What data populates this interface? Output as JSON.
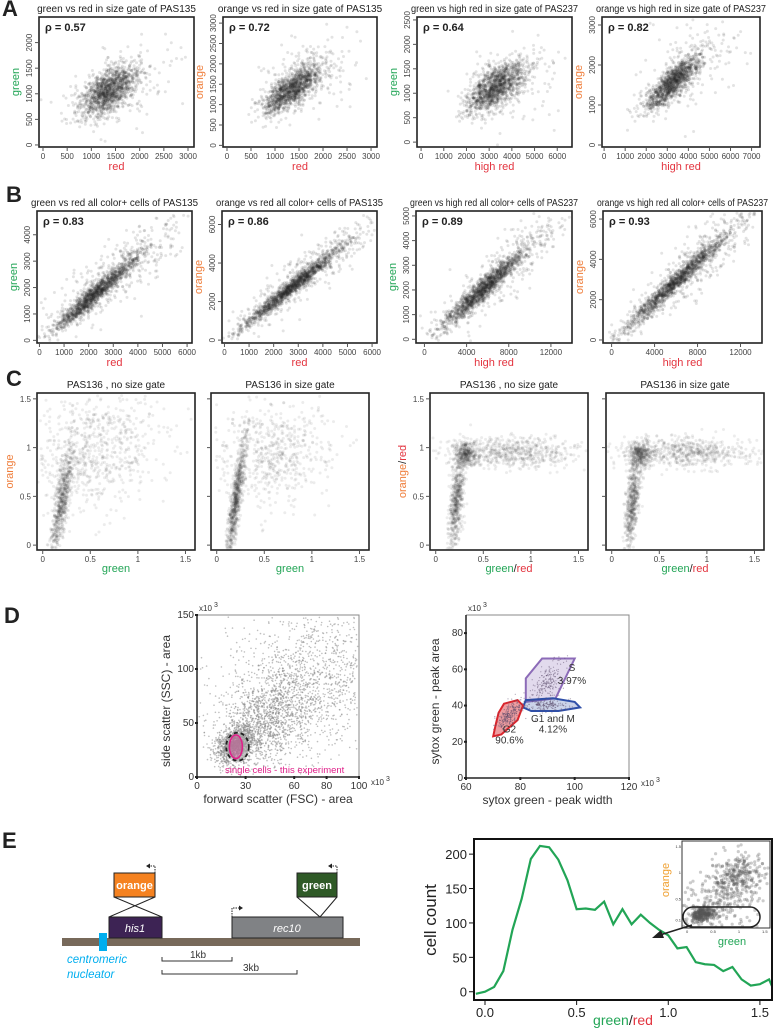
{
  "colors": {
    "green": "#22a556",
    "red": "#e3343f",
    "orange": "#ef7d3a",
    "black": "#222222",
    "magenta": "#e0208a",
    "cyan": "#00aeef",
    "gate_red": "#d9262d",
    "gate_purple": "#8c6bb8",
    "gate_blue": "#2f4fa8"
  },
  "panel_letters": {
    "A": "A",
    "B": "B",
    "C": "C",
    "D": "D",
    "E": "E"
  },
  "chart_data": [
    {
      "id": "A1",
      "type": "scatter",
      "title": "green vs red in size gate of PAS135",
      "rho": "ρ = 0.57",
      "xlim": [
        -83,
        3124
      ],
      "ylim": [
        -40,
        2500
      ],
      "xticks": [
        0,
        500,
        1000,
        1500,
        2000,
        2500,
        3000
      ],
      "yticks": [
        0,
        500,
        1000,
        1500,
        2000
      ],
      "xlabel": [
        {
          "text": "red",
          "color": "red"
        }
      ],
      "ylabel": [
        {
          "text": "green",
          "color": "green"
        }
      ],
      "clouds": [
        {
          "cx": 1350,
          "cy": 1050,
          "sx": 300,
          "sy": 260,
          "r": 0.57,
          "n": 1300
        },
        {
          "cx": 1700,
          "cy": 1150,
          "sx": 600,
          "sy": 400,
          "r": 0.3,
          "n": 150
        }
      ]
    },
    {
      "id": "A2",
      "type": "scatter",
      "title": "orange vs red in size gate of PAS135",
      "rho": "ρ = 0.72",
      "xlim": [
        -83,
        3124
      ],
      "ylim": [
        -40,
        3150
      ],
      "xticks": [
        0,
        500,
        1000,
        1500,
        2000,
        2500,
        3000
      ],
      "yticks": [
        0,
        500,
        1000,
        1500,
        2000,
        2500,
        3000
      ],
      "xlabel": [
        {
          "text": "red",
          "color": "red"
        }
      ],
      "ylabel": [
        {
          "text": "orange",
          "color": "orange"
        }
      ],
      "clouds": [
        {
          "cx": 1350,
          "cy": 1380,
          "sx": 300,
          "sy": 300,
          "r": 0.72,
          "n": 1300
        },
        {
          "cx": 1800,
          "cy": 1700,
          "sx": 600,
          "sy": 500,
          "r": 0.4,
          "n": 150
        }
      ]
    },
    {
      "id": "A3",
      "type": "scatter",
      "title": "green vs high red in size gate of PAS237",
      "rho": "ρ = 0.64",
      "xlim": [
        -180,
        6650
      ],
      "ylim": [
        -100,
        2560
      ],
      "xticks": [
        0,
        1000,
        2000,
        3000,
        4000,
        5000,
        6000
      ],
      "yticks": [
        0,
        500,
        1000,
        1500,
        2000,
        2500
      ],
      "xlabel": [
        {
          "text": "high red",
          "color": "red"
        }
      ],
      "ylabel": [
        {
          "text": "green",
          "color": "green"
        }
      ],
      "clouds": [
        {
          "cx": 3300,
          "cy": 1120,
          "sx": 650,
          "sy": 260,
          "r": 0.64,
          "n": 1300
        },
        {
          "cx": 4000,
          "cy": 1250,
          "sx": 1200,
          "sy": 450,
          "r": 0.3,
          "n": 150
        }
      ]
    },
    {
      "id": "A4",
      "type": "scatter",
      "title": "orange vs high red in size gate of PAS237",
      "rho": "ρ = 0.82",
      "xlim": [
        -100,
        7400
      ],
      "ylim": [
        -50,
        3200
      ],
      "xticks": [
        0,
        1000,
        2000,
        3000,
        4000,
        5000,
        6000,
        7000
      ],
      "yticks": [
        0,
        1000,
        2000,
        3000
      ],
      "xlabel": [
        {
          "text": "high red",
          "color": "red"
        }
      ],
      "ylabel": [
        {
          "text": "orange",
          "color": "orange"
        }
      ],
      "clouds": [
        {
          "cx": 3300,
          "cy": 1580,
          "sx": 650,
          "sy": 350,
          "r": 0.82,
          "n": 1300
        },
        {
          "cx": 4300,
          "cy": 2000,
          "sx": 1200,
          "sy": 600,
          "r": 0.4,
          "n": 130
        }
      ]
    },
    {
      "id": "B1",
      "type": "scatter",
      "title": "green vs red all color+ cells of PAS135",
      "rho": "ρ = 0.83",
      "xlim": [
        -100,
        6200
      ],
      "ylim": [
        -100,
        4900
      ],
      "xticks": [
        0,
        1000,
        2000,
        3000,
        4000,
        5000,
        6000
      ],
      "yticks": [
        0,
        1000,
        2000,
        3000,
        4000
      ],
      "xlabel": [
        {
          "text": "red",
          "color": "red"
        }
      ],
      "ylabel": [
        {
          "text": "green",
          "color": "green"
        }
      ],
      "clouds": [
        {
          "cx": 2300,
          "cy": 1800,
          "sx": 850,
          "sy": 700,
          "r": 0.96,
          "n": 1400
        },
        {
          "cx": 3300,
          "cy": 2600,
          "sx": 1500,
          "sy": 1200,
          "r": 0.85,
          "n": 400
        }
      ]
    },
    {
      "id": "B2",
      "type": "scatter",
      "title": "orange vs red all color+ cells of PAS135",
      "rho": "ρ = 0.86",
      "xlim": [
        -100,
        6200
      ],
      "ylim": [
        -150,
        6700
      ],
      "xticks": [
        0,
        1000,
        2000,
        3000,
        4000,
        5000,
        6000
      ],
      "yticks": [
        0,
        2000,
        4000,
        6000
      ],
      "xlabel": [
        {
          "text": "red",
          "color": "red"
        }
      ],
      "ylabel": [
        {
          "text": "orange",
          "color": "orange"
        }
      ],
      "clouds": [
        {
          "cx": 2700,
          "cy": 2700,
          "sx": 1000,
          "sy": 1050,
          "r": 0.98,
          "n": 1400
        },
        {
          "cx": 3600,
          "cy": 3700,
          "sx": 1500,
          "sy": 1500,
          "r": 0.9,
          "n": 400
        }
      ]
    },
    {
      "id": "B3",
      "type": "scatter",
      "title": "green vs high red all color+ cells of PAS237",
      "rho": "ρ = 0.89",
      "xlim": [
        -800,
        14000
      ],
      "ylim": [
        -150,
        5200
      ],
      "xticks": [
        0,
        4000,
        8000,
        12000
      ],
      "yticks": [
        0,
        1000,
        2000,
        3000,
        4000,
        5000
      ],
      "xlabel": [
        {
          "text": "high red",
          "color": "red"
        }
      ],
      "ylabel": [
        {
          "text": "green",
          "color": "green"
        }
      ],
      "clouds": [
        {
          "cx": 5500,
          "cy": 2000,
          "sx": 2000,
          "sy": 800,
          "r": 0.96,
          "n": 1400
        },
        {
          "cx": 7500,
          "cy": 2800,
          "sx": 3200,
          "sy": 1300,
          "r": 0.88,
          "n": 400
        }
      ]
    },
    {
      "id": "B4",
      "type": "scatter",
      "title": "orange vs high red all color+ cells of PAS237",
      "rho": "ρ = 0.93",
      "xlim": [
        -800,
        14000
      ],
      "ylim": [
        -150,
        6400
      ],
      "xticks": [
        0,
        4000,
        8000,
        12000
      ],
      "yticks": [
        0,
        2000,
        4000,
        6000
      ],
      "xlabel": [
        {
          "text": "high red",
          "color": "red"
        }
      ],
      "ylabel": [
        {
          "text": "orange",
          "color": "orange"
        }
      ],
      "clouds": [
        {
          "cx": 6000,
          "cy": 2900,
          "sx": 2500,
          "sy": 1250,
          "r": 0.98,
          "n": 1400
        },
        {
          "cx": 8000,
          "cy": 3800,
          "sx": 3300,
          "sy": 1700,
          "r": 0.9,
          "n": 400
        }
      ]
    },
    {
      "id": "C1",
      "type": "scatter",
      "title": "PAS136 , no size gate",
      "rho": "",
      "xlim": [
        -0.06,
        1.6
      ],
      "ylim": [
        -0.05,
        1.56
      ],
      "xticks": [
        "0",
        "0.5",
        "1",
        "1.5"
      ],
      "yticks": [
        "0",
        "0.5",
        "1",
        "1.5"
      ],
      "xlabel": [
        {
          "text": "green",
          "color": "green"
        }
      ],
      "ylabel": [
        {
          "text": "orange",
          "color": "orange"
        }
      ],
      "clouds": [
        {
          "cx": 0.2,
          "cy": 0.45,
          "sx": 0.06,
          "sy": 0.3,
          "r": 0.8,
          "n": 700
        },
        {
          "cx": 0.55,
          "cy": 0.95,
          "sx": 0.35,
          "sy": 0.3,
          "r": 0.2,
          "n": 700
        }
      ]
    },
    {
      "id": "C2",
      "type": "scatter",
      "title": "PAS136 in size gate",
      "rho": "",
      "xlim": [
        -0.06,
        1.6
      ],
      "ylim": [
        -0.05,
        1.56
      ],
      "xticks": [
        "0",
        "0.5",
        "1",
        "1.5"
      ],
      "yticks": [
        "0",
        "0.5",
        "1",
        "1.5"
      ],
      "xlabel": [
        {
          "text": "green",
          "color": "green"
        }
      ],
      "ylabel": [],
      "clouds": [
        {
          "cx": 0.2,
          "cy": 0.45,
          "sx": 0.05,
          "sy": 0.3,
          "r": 0.85,
          "n": 800
        },
        {
          "cx": 0.6,
          "cy": 0.95,
          "sx": 0.3,
          "sy": 0.25,
          "r": 0.1,
          "n": 600
        }
      ]
    },
    {
      "id": "C3",
      "type": "scatter",
      "title": "PAS136 , no size gate",
      "rho": "",
      "xlim": [
        -0.06,
        1.6
      ],
      "ylim": [
        -0.05,
        1.56
      ],
      "xticks": [
        "0",
        "0.5",
        "1",
        "1.5"
      ],
      "yticks": [
        "0",
        "0.5",
        "1",
        "1.5"
      ],
      "xlabel": [
        {
          "text": "green",
          "color": "green"
        },
        {
          "text": "/",
          "color": "black"
        },
        {
          "text": "red",
          "color": "red"
        }
      ],
      "ylabel": [
        {
          "text": "orange",
          "color": "orange"
        },
        {
          "text": "/",
          "color": "black"
        },
        {
          "text": "red",
          "color": "red"
        }
      ],
      "clouds": [
        {
          "cx": 0.22,
          "cy": 0.45,
          "sx": 0.04,
          "sy": 0.25,
          "r": 0.5,
          "n": 600
        },
        {
          "cx": 0.32,
          "cy": 0.93,
          "sx": 0.06,
          "sy": 0.06,
          "r": 0,
          "n": 350
        },
        {
          "cx": 0.8,
          "cy": 0.95,
          "sx": 0.35,
          "sy": 0.08,
          "r": 0,
          "n": 600
        }
      ]
    },
    {
      "id": "C4",
      "type": "scatter",
      "title": "PAS136 in size gate",
      "rho": "",
      "xlim": [
        -0.06,
        1.6
      ],
      "ylim": [
        -0.05,
        1.56
      ],
      "xticks": [
        "0",
        "0.5",
        "1",
        "1.5"
      ],
      "yticks": [
        "0",
        "0.5",
        "1",
        "1.5"
      ],
      "xlabel": [
        {
          "text": "green",
          "color": "green"
        },
        {
          "text": "/",
          "color": "black"
        },
        {
          "text": "red",
          "color": "red"
        }
      ],
      "ylabel": [],
      "clouds": [
        {
          "cx": 0.22,
          "cy": 0.45,
          "sx": 0.04,
          "sy": 0.25,
          "r": 0.5,
          "n": 600
        },
        {
          "cx": 0.3,
          "cy": 0.93,
          "sx": 0.06,
          "sy": 0.06,
          "r": 0,
          "n": 350
        },
        {
          "cx": 0.8,
          "cy": 0.95,
          "sx": 0.35,
          "sy": 0.08,
          "r": 0,
          "n": 600
        }
      ]
    },
    {
      "id": "D1",
      "type": "scatter",
      "xlabel": "forward scatter (FSC) - area",
      "ylabel": "side scatter (SSC) - area",
      "multiplier": "x10",
      "exponent": "3",
      "xlim": [
        0,
        100
      ],
      "ylim": [
        0,
        150
      ],
      "xticks": [
        "0",
        "30",
        "60",
        "80",
        "100"
      ],
      "yticks": [
        "0",
        "50",
        "100",
        "150"
      ],
      "gate_label": "single cells - this experiment",
      "gate": {
        "cx": 24,
        "cy": 28,
        "rx": 4,
        "ry": 11
      },
      "outer_gate": {
        "cx": 25,
        "cy": 28,
        "rx": 7,
        "ry": 13
      },
      "clouds": [
        {
          "cx": 24,
          "cy": 30,
          "sx": 6,
          "sy": 9,
          "r": 0.3,
          "n": 1200
        },
        {
          "cx": 42,
          "cy": 50,
          "sx": 12,
          "sy": 18,
          "r": 0.3,
          "n": 900
        },
        {
          "cx": 65,
          "cy": 85,
          "sx": 25,
          "sy": 35,
          "r": 0.2,
          "n": 1500
        }
      ]
    },
    {
      "id": "D2",
      "type": "scatter",
      "xlabel": "sytox green - peak width",
      "ylabel": "sytox green - peak area",
      "multiplier": "x10",
      "exponent": "3",
      "xlim": [
        60,
        120
      ],
      "ylim": [
        0,
        90
      ],
      "xticks": [
        "60",
        "80",
        "100",
        "120"
      ],
      "yticks": [
        "0",
        "20",
        "40",
        "60",
        "80"
      ],
      "gates": [
        {
          "name": "S",
          "percent": "3.97%",
          "color": "gate_purple",
          "points": [
            [
              82,
              42
            ],
            [
              82,
              55
            ],
            [
              88,
              66
            ],
            [
              100,
              66
            ],
            [
              93,
              44
            ]
          ]
        },
        {
          "name": "G1 and M",
          "percent": "4.12%",
          "color": "gate_blue",
          "points": [
            [
              81,
              39
            ],
            [
              82,
              43
            ],
            [
              92,
              44
            ],
            [
              100,
              42
            ],
            [
              102,
              39
            ],
            [
              94,
              37
            ],
            [
              84,
              37
            ]
          ]
        },
        {
          "name": "G2",
          "percent": "90.6%",
          "color": "gate_red",
          "points": [
            [
              70,
              23
            ],
            [
              73,
              24
            ],
            [
              79,
              32
            ],
            [
              81,
              40
            ],
            [
              79,
              43
            ],
            [
              74,
              41
            ],
            [
              72,
              36
            ],
            [
              71,
              30
            ]
          ]
        }
      ]
    },
    {
      "id": "E",
      "type": "line",
      "xlabel": [
        {
          "text": "green",
          "color": "green"
        },
        {
          "text": "/",
          "color": "black"
        },
        {
          "text": "red",
          "color": "red"
        }
      ],
      "ylabel": "cell count",
      "xlim": [
        -0.06,
        1.566
      ],
      "ylim": [
        -12,
        222
      ],
      "xticks": [
        "0.0",
        "0.5",
        "1.0",
        "1.5"
      ],
      "xtick_values": [
        0,
        0.5,
        1,
        1.5
      ],
      "yticks": [
        0,
        50,
        100,
        150,
        200
      ],
      "series": [
        {
          "color": "green",
          "x": [
            -0.05,
            0,
            0.05,
            0.1,
            0.15,
            0.2,
            0.25,
            0.3,
            0.35,
            0.4,
            0.45,
            0.5,
            0.55,
            0.6,
            0.65,
            0.7,
            0.75,
            0.8,
            0.85,
            0.9,
            0.95,
            1.0,
            1.05,
            1.1,
            1.15,
            1.2,
            1.25,
            1.3,
            1.35,
            1.4,
            1.45,
            1.5,
            1.55,
            1.6
          ],
          "y": [
            -3,
            0,
            7,
            30,
            90,
            135,
            193,
            212,
            210,
            192,
            162,
            120,
            121,
            119,
            131,
            98,
            120,
            98,
            112,
            100,
            90,
            82,
            63,
            65,
            43,
            40,
            39,
            30,
            36,
            18,
            9,
            11,
            18,
            8
          ]
        }
      ],
      "inset": {
        "xlabel": "green",
        "ylabel": "orange",
        "xticks": [
          "0",
          "0.5",
          "1",
          "1.5"
        ],
        "yticks": [
          "0.1",
          "0.5",
          "1",
          "1.5"
        ],
        "xlim": [
          -0.1,
          1.6
        ],
        "ylim": [
          -0.05,
          1.6
        ],
        "clouds": [
          {
            "cx": 0.3,
            "cy": 0.2,
            "sx": 0.12,
            "sy": 0.07,
            "r": 0.2,
            "n": 250
          },
          {
            "cx": 1.0,
            "cy": 0.95,
            "sx": 0.25,
            "sy": 0.2,
            "r": 0.3,
            "n": 200
          },
          {
            "cx": 0.7,
            "cy": 0.5,
            "sx": 0.45,
            "sy": 0.35,
            "r": 0.4,
            "n": 300
          }
        ]
      }
    }
  ],
  "diagram": {
    "orange_label": "orange",
    "green_label": "green",
    "his1_label": "his1",
    "rec10_label": "rec10",
    "centromere_line1": "centromeric",
    "centromere_line2": "nucleator",
    "scale_1kb": "1kb",
    "scale_3kb": "3kb"
  }
}
